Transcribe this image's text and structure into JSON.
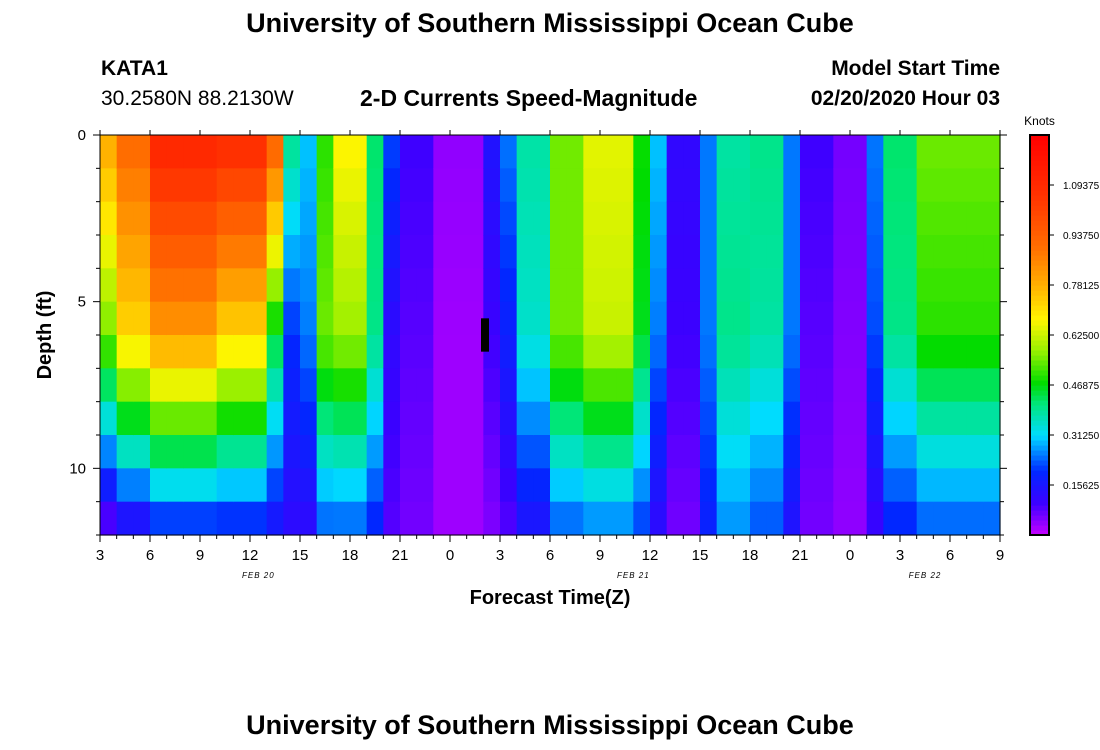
{
  "header": {
    "title_top": "University of Southern Mississippi Ocean Cube",
    "station_id": "KATA1",
    "station_coords": "30.2580N 88.2130W",
    "plot_title": "2-D Currents Speed-Magnitude",
    "model_start_label": "Model Start Time",
    "model_start_value": "02/20/2020 Hour 03"
  },
  "footer": {
    "title_bottom": "University of Southern Mississippi Ocean Cube"
  },
  "chart_data": {
    "type": "heatmap",
    "title": "2-D Currents Speed-Magnitude",
    "xlabel": "Forecast Time(Z)",
    "ylabel": "Depth (ft)",
    "x_hours_range": [
      0,
      54
    ],
    "y_depth_range": [
      0,
      12
    ],
    "y_ticks": [
      "0",
      "5",
      "10"
    ],
    "y_tick_values": [
      0,
      5,
      10
    ],
    "x_tick_labels": [
      "3",
      "6",
      "9",
      "12",
      "15",
      "18",
      "21",
      "0",
      "3",
      "6",
      "9",
      "12",
      "15",
      "18",
      "21",
      "0",
      "3",
      "6",
      "9"
    ],
    "date_labels": [
      {
        "text": "FEB 20",
        "hour": 9.5
      },
      {
        "text": "FEB 21",
        "hour": 32
      },
      {
        "text": "FEB 22",
        "hour": 49.5
      }
    ],
    "colorbar": {
      "label": "Knots",
      "vmin": 0,
      "vmax": 1.25,
      "tick_labels": [
        "1.09375",
        "0.93750",
        "0.78125",
        "0.62500",
        "0.46875",
        "0.31250",
        "0.15625"
      ],
      "tick_values": [
        1.09375,
        0.9375,
        0.78125,
        0.625,
        0.46875,
        0.3125,
        0.15625
      ]
    },
    "depth_profile_rows_ft": [
      0.5,
      1.5,
      2.5,
      3.5,
      4.5,
      5.5,
      6.5,
      7.5,
      8.5,
      9.5,
      10.5,
      11.5
    ],
    "time_series": [
      {
        "start_hour": 0,
        "end_hour": 1,
        "surface": 0.8,
        "mid": 0.55,
        "bottom": 0.05
      },
      {
        "start_hour": 1,
        "end_hour": 3,
        "surface": 0.92,
        "mid": 0.72,
        "bottom": 0.1
      },
      {
        "start_hour": 3,
        "end_hour": 7,
        "surface": 1.12,
        "mid": 0.82,
        "bottom": 0.16
      },
      {
        "start_hour": 7,
        "end_hour": 10,
        "surface": 1.1,
        "mid": 0.72,
        "bottom": 0.16
      },
      {
        "start_hour": 10,
        "end_hour": 11,
        "surface": 0.95,
        "mid": 0.45,
        "bottom": 0.14
      },
      {
        "start_hour": 11,
        "end_hour": 12,
        "surface": 0.4,
        "mid": 0.2,
        "bottom": 0.12
      },
      {
        "start_hour": 12,
        "end_hour": 13,
        "surface": 0.3,
        "mid": 0.25,
        "bottom": 0.12
      },
      {
        "start_hour": 13,
        "end_hour": 14,
        "surface": 0.5,
        "mid": 0.55,
        "bottom": 0.22
      },
      {
        "start_hour": 14,
        "end_hour": 16,
        "surface": 0.68,
        "mid": 0.58,
        "bottom": 0.22
      },
      {
        "start_hour": 16,
        "end_hour": 17,
        "surface": 0.42,
        "mid": 0.4,
        "bottom": 0.18
      },
      {
        "start_hour": 17,
        "end_hour": 18,
        "surface": 0.22,
        "mid": 0.12,
        "bottom": 0.08
      },
      {
        "start_hour": 18,
        "end_hour": 20,
        "surface": 0.1,
        "mid": 0.08,
        "bottom": 0.06
      },
      {
        "start_hour": 20,
        "end_hour": 23,
        "surface": 0.04,
        "mid": 0.03,
        "bottom": 0.03
      },
      {
        "start_hour": 23,
        "end_hour": 24,
        "surface": 0.15,
        "mid": 0.1,
        "bottom": 0.05
      },
      {
        "start_hour": 24,
        "end_hour": 25,
        "surface": 0.25,
        "mid": 0.18,
        "bottom": 0.08
      },
      {
        "start_hour": 25,
        "end_hour": 27,
        "surface": 0.38,
        "mid": 0.35,
        "bottom": 0.14
      },
      {
        "start_hour": 27,
        "end_hour": 29,
        "surface": 0.55,
        "mid": 0.55,
        "bottom": 0.22
      },
      {
        "start_hour": 29,
        "end_hour": 32,
        "surface": 0.65,
        "mid": 0.62,
        "bottom": 0.24
      },
      {
        "start_hour": 32,
        "end_hour": 33,
        "surface": 0.48,
        "mid": 0.46,
        "bottom": 0.2
      },
      {
        "start_hour": 33,
        "end_hour": 34,
        "surface": 0.3,
        "mid": 0.25,
        "bottom": 0.12
      },
      {
        "start_hour": 34,
        "end_hour": 36,
        "surface": 0.12,
        "mid": 0.1,
        "bottom": 0.06
      },
      {
        "start_hour": 36,
        "end_hour": 37,
        "surface": 0.25,
        "mid": 0.25,
        "bottom": 0.18
      },
      {
        "start_hour": 37,
        "end_hour": 39,
        "surface": 0.38,
        "mid": 0.4,
        "bottom": 0.26
      },
      {
        "start_hour": 39,
        "end_hour": 41,
        "surface": 0.4,
        "mid": 0.38,
        "bottom": 0.22
      },
      {
        "start_hour": 41,
        "end_hour": 42,
        "surface": 0.25,
        "mid": 0.25,
        "bottom": 0.14
      },
      {
        "start_hour": 42,
        "end_hour": 44,
        "surface": 0.1,
        "mid": 0.08,
        "bottom": 0.06
      },
      {
        "start_hour": 44,
        "end_hour": 46,
        "surface": 0.06,
        "mid": 0.05,
        "bottom": 0.04
      },
      {
        "start_hour": 46,
        "end_hour": 47,
        "surface": 0.25,
        "mid": 0.22,
        "bottom": 0.1
      },
      {
        "start_hour": 47,
        "end_hour": 49,
        "surface": 0.42,
        "mid": 0.4,
        "bottom": 0.18
      },
      {
        "start_hour": 49,
        "end_hour": 54,
        "surface": 0.55,
        "mid": 0.5,
        "bottom": 0.22
      }
    ],
    "missing_data": {
      "hour": 23.1,
      "depth_from": 5.5,
      "depth_to": 6.5
    }
  }
}
